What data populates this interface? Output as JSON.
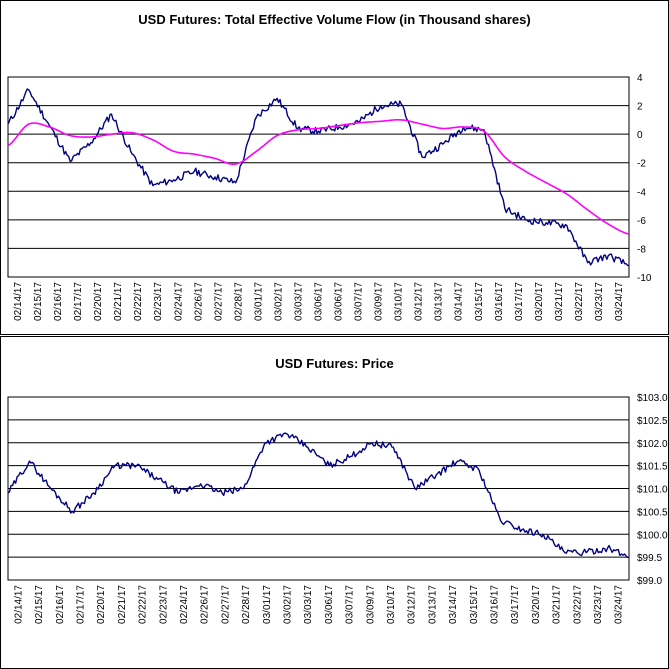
{
  "chart_data": [
    {
      "type": "line",
      "title": "USD Futures: Total Effective Volume Flow (in Thousand shares)",
      "ylim": [
        -10,
        4
      ],
      "yticks": [
        4,
        2,
        0,
        -2,
        -4,
        -6,
        -8,
        -10
      ],
      "ytick_labels": [
        "4",
        "2",
        "0",
        "-2",
        "-4",
        "-6",
        "-8",
        "-10"
      ],
      "x": [
        "02/14/17",
        "02/15/17",
        "02/16/17",
        "02/17/17",
        "02/20/17",
        "02/21/17",
        "02/22/17",
        "02/23/17",
        "02/24/17",
        "02/26/17",
        "02/27/17",
        "02/28/17",
        "03/01/17",
        "03/02/17",
        "03/03/17",
        "03/06/17",
        "03/06/17",
        "03/07/17",
        "03/09/17",
        "03/10/17",
        "03/12/17",
        "03/13/17",
        "03/14/17",
        "03/15/17",
        "03/16/17",
        "03/17/17",
        "03/20/17",
        "03/21/17",
        "03/22/17",
        "03/23/17",
        "03/24/17"
      ],
      "grid": true,
      "legend": "none",
      "series": [
        {
          "color": "#000080",
          "values": [
            0.7,
            3.1,
            0.6,
            -1.9,
            -0.6,
            1.4,
            -1.4,
            -3.6,
            -3.2,
            -2.6,
            -3.0,
            -3.4,
            1.2,
            2.5,
            0.4,
            0.2,
            0.5,
            0.9,
            2.0,
            2.1,
            -1.6,
            -0.7,
            0.5,
            0.3,
            -5.2,
            -6.0,
            -6.2,
            -6.4,
            -9.0,
            -8.5,
            -9.2
          ]
        },
        {
          "color": "#FF00FF",
          "values": [
            -0.8,
            0.7,
            0.5,
            -0.1,
            -0.2,
            0.0,
            0.1,
            -0.4,
            -1.2,
            -1.4,
            -1.7,
            -2.1,
            -1.2,
            -0.1,
            0.3,
            0.4,
            0.6,
            0.8,
            0.9,
            1.0,
            0.7,
            0.4,
            0.5,
            0.2,
            -1.6,
            -2.6,
            -3.4,
            -4.2,
            -5.3,
            -6.3,
            -7.0
          ]
        }
      ]
    },
    {
      "type": "line",
      "title": "USD Futures: Price",
      "ylim": [
        99.0,
        103.0
      ],
      "yticks": [
        103.0,
        102.5,
        102.0,
        101.5,
        101.0,
        100.5,
        100.0,
        99.5,
        99.0
      ],
      "ytick_labels": [
        "$103.0",
        "$102.5",
        "$102.0",
        "$101.5",
        "$101.0",
        "$100.5",
        "$100.0",
        "$99.5",
        "$99.0"
      ],
      "x": [
        "02/14/17",
        "02/15/17",
        "02/16/17",
        "02/17/17",
        "02/20/17",
        "02/21/17",
        "02/22/17",
        "02/23/17",
        "02/24/17",
        "02/26/17",
        "02/27/17",
        "02/28/17",
        "03/01/17",
        "03/02/17",
        "03/03/17",
        "03/06/17",
        "03/07/17",
        "03/09/17",
        "03/10/17",
        "03/12/17",
        "03/13/17",
        "03/14/17",
        "03/15/17",
        "03/16/17",
        "03/17/17",
        "03/20/17",
        "03/21/17",
        "03/22/17",
        "03/23/17",
        "03/24/17"
      ],
      "grid": true,
      "legend": "none",
      "series": [
        {
          "color": "#000080",
          "values": [
            100.9,
            101.6,
            101.0,
            100.5,
            100.9,
            101.5,
            101.5,
            101.2,
            100.9,
            101.1,
            100.9,
            101.0,
            102.0,
            102.2,
            101.9,
            101.5,
            101.7,
            102.0,
            101.9,
            101.0,
            101.3,
            101.6,
            101.4,
            100.3,
            100.1,
            100.0,
            99.6,
            99.6,
            99.7,
            99.5
          ]
        }
      ]
    }
  ]
}
